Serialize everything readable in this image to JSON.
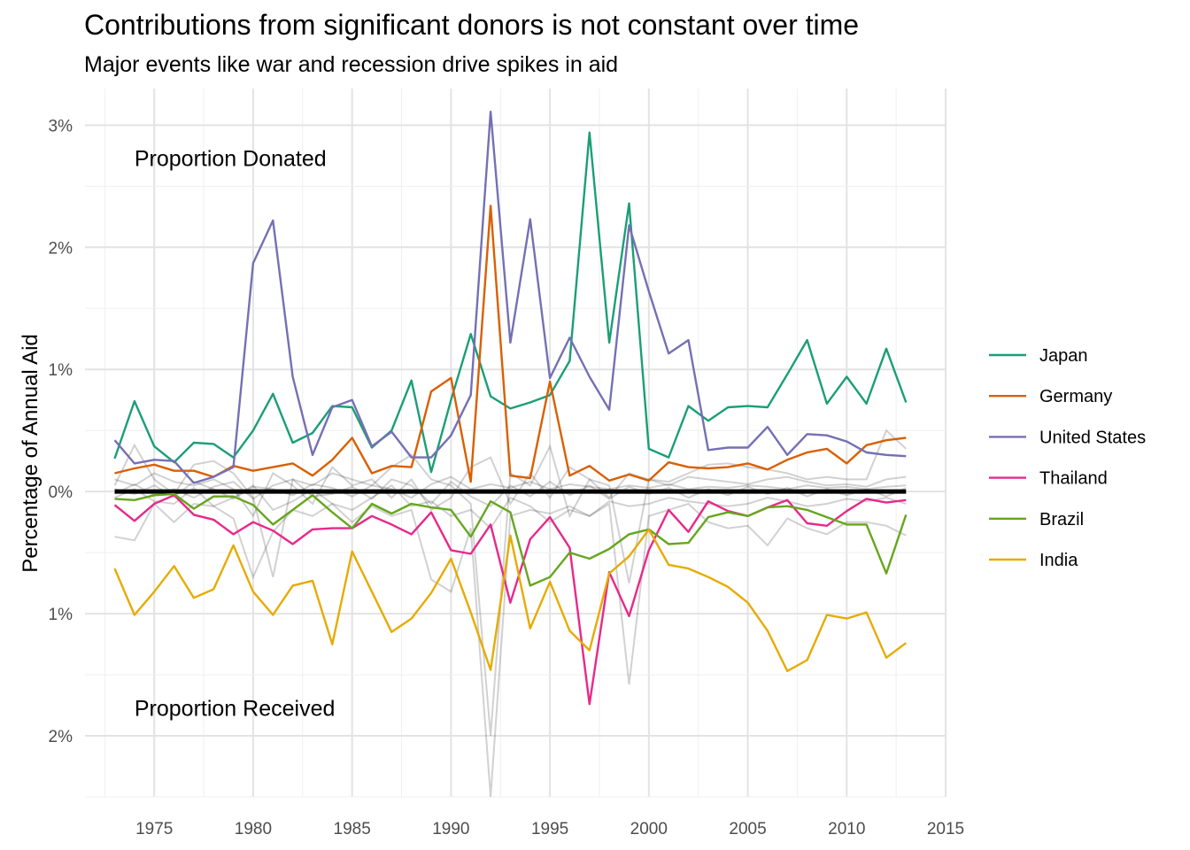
{
  "chart_data": {
    "type": "line",
    "title": "Contributions from significant donors is not constant over time",
    "subtitle": "Major events like war and recession drive spikes in aid",
    "ylabel": "Percentage of Annual Aid",
    "xlabel": "",
    "xlim": [
      1971.5,
      2015
    ],
    "ylim": [
      -2.5,
      3.3
    ],
    "x_ticks": [
      1975,
      1980,
      1985,
      1990,
      1995,
      2000,
      2005,
      2010,
      2015
    ],
    "y_ticks": [
      {
        "value": 3,
        "label": "3%"
      },
      {
        "value": 2,
        "label": "2%"
      },
      {
        "value": 1,
        "label": "1%"
      },
      {
        "value": 0,
        "label": "0%"
      },
      {
        "value": -1,
        "label": "1%"
      },
      {
        "value": -2,
        "label": "2%"
      }
    ],
    "grid": true,
    "legend_position": "right",
    "annotations": [
      {
        "text": "Proportion Donated",
        "x": 1974,
        "y": 2.73
      },
      {
        "text": "Proportion Received",
        "x": 1974,
        "y": -1.77
      }
    ],
    "x": [
      1973,
      1974,
      1975,
      1976,
      1977,
      1978,
      1979,
      1980,
      1981,
      1982,
      1983,
      1984,
      1985,
      1986,
      1987,
      1988,
      1989,
      1990,
      1991,
      1992,
      1993,
      1994,
      1995,
      1996,
      1997,
      1998,
      1999,
      2000,
      2001,
      2002,
      2003,
      2004,
      2005,
      2006,
      2007,
      2008,
      2009,
      2010,
      2011,
      2012,
      2013
    ],
    "series": [
      {
        "name": "Japan",
        "color": "#1B9E77",
        "values": [
          0.27,
          0.74,
          0.37,
          0.24,
          0.4,
          0.39,
          0.28,
          0.5,
          0.8,
          0.4,
          0.48,
          0.7,
          0.69,
          0.36,
          0.5,
          0.91,
          0.16,
          0.75,
          1.29,
          0.78,
          0.68,
          0.73,
          0.79,
          1.07,
          2.94,
          1.22,
          2.36,
          0.35,
          0.28,
          0.7,
          0.58,
          0.69,
          0.7,
          0.69,
          0.96,
          1.24,
          0.72,
          0.94,
          0.72,
          1.17,
          0.73
        ]
      },
      {
        "name": "Germany",
        "color": "#D95F02",
        "values": [
          0.15,
          0.19,
          0.22,
          0.17,
          0.17,
          0.12,
          0.21,
          0.17,
          0.2,
          0.23,
          0.13,
          0.26,
          0.44,
          0.15,
          0.21,
          0.2,
          0.82,
          0.93,
          0.08,
          2.34,
          0.13,
          0.11,
          0.9,
          0.13,
          0.21,
          0.09,
          0.14,
          0.09,
          0.24,
          0.2,
          0.19,
          0.2,
          0.23,
          0.18,
          0.26,
          0.32,
          0.35,
          0.23,
          0.38,
          0.42,
          0.44
        ]
      },
      {
        "name": "United States",
        "color": "#7570B3",
        "values": [
          0.42,
          0.23,
          0.26,
          0.25,
          0.07,
          0.12,
          0.2,
          1.87,
          2.22,
          0.94,
          0.3,
          0.69,
          0.75,
          0.37,
          0.49,
          0.28,
          0.28,
          0.46,
          0.79,
          3.11,
          1.22,
          2.23,
          0.93,
          1.26,
          0.94,
          0.67,
          2.18,
          1.64,
          1.13,
          1.24,
          0.34,
          0.36,
          0.36,
          0.53,
          0.3,
          0.47,
          0.46,
          0.41,
          0.32,
          0.3,
          0.29
        ]
      },
      {
        "name": "Thailand",
        "color": "#E7298A",
        "values": [
          -0.11,
          -0.24,
          -0.1,
          -0.03,
          -0.19,
          -0.23,
          -0.35,
          -0.25,
          -0.32,
          -0.43,
          -0.31,
          -0.3,
          -0.3,
          -0.2,
          -0.27,
          -0.35,
          -0.17,
          -0.48,
          -0.51,
          -0.27,
          -0.91,
          -0.39,
          -0.21,
          -0.46,
          -1.74,
          -0.66,
          -1.02,
          -0.48,
          -0.15,
          -0.33,
          -0.08,
          -0.16,
          -0.2,
          -0.13,
          -0.07,
          -0.26,
          -0.28,
          -0.16,
          -0.06,
          -0.09,
          -0.07
        ]
      },
      {
        "name": "Brazil",
        "color": "#66A61E",
        "values": [
          -0.06,
          -0.07,
          -0.03,
          -0.02,
          -0.14,
          -0.04,
          -0.04,
          -0.11,
          -0.27,
          -0.15,
          -0.03,
          -0.17,
          -0.3,
          -0.1,
          -0.18,
          -0.1,
          -0.13,
          -0.15,
          -0.37,
          -0.08,
          -0.17,
          -0.77,
          -0.7,
          -0.5,
          -0.55,
          -0.47,
          -0.35,
          -0.31,
          -0.43,
          -0.42,
          -0.21,
          -0.17,
          -0.2,
          -0.13,
          -0.12,
          -0.15,
          -0.21,
          -0.27,
          -0.27,
          -0.67,
          -0.19
        ]
      },
      {
        "name": "India",
        "color": "#E6AB02",
        "values": [
          -0.63,
          -1.01,
          -0.82,
          -0.61,
          -0.87,
          -0.8,
          -0.44,
          -0.82,
          -1.01,
          -0.77,
          -0.73,
          -1.25,
          -0.49,
          -0.82,
          -1.15,
          -1.04,
          -0.83,
          -0.55,
          -0.99,
          -1.46,
          -0.36,
          -1.12,
          -0.74,
          -1.14,
          -1.3,
          -0.67,
          -0.53,
          -0.31,
          -0.6,
          -0.63,
          -0.7,
          -0.78,
          -0.91,
          -1.14,
          -1.47,
          -1.38,
          -1.01,
          -1.04,
          -0.99,
          -1.36,
          -1.24
        ]
      }
    ],
    "background_series": [
      [
        -0.37,
        -0.4,
        -0.1,
        -0.25,
        -0.1,
        -0.12,
        -0.22,
        -0.7,
        -0.33,
        -0.15,
        -0.2,
        -0.1,
        -0.25,
        -0.12,
        -0.2,
        -0.15,
        -0.72,
        -0.82,
        -0.3,
        -2.5,
        -0.2,
        -0.15,
        -0.18,
        -0.12,
        -0.2,
        -0.1,
        -1.58,
        -0.2,
        -0.15,
        -0.1,
        -0.25,
        -0.3,
        -0.28,
        -0.44,
        -0.22,
        -0.3,
        -0.35,
        -0.25,
        -0.25,
        -0.28,
        -0.36
      ],
      [
        0.05,
        0.38,
        0.1,
        -0.02,
        0.22,
        0.25,
        0.15,
        -0.05,
        -0.7,
        0.1,
        0.05,
        0.15,
        0.1,
        0.05,
        0.2,
        0.3,
        0.1,
        0.05,
        -0.1,
        -2.0,
        0.15,
        0.05,
        0.37,
        -0.2,
        0.1,
        0.05,
        -0.75,
        0.1,
        0.08,
        0.15,
        0.22,
        0.23,
        0.2,
        0.18,
        0.15,
        0.1,
        0.12,
        0.1,
        0.1,
        0.5,
        0.35
      ],
      [
        0.1,
        0.05,
        0.15,
        0.08,
        0.05,
        0.1,
        0.02,
        -0.2,
        0.15,
        0.05,
        -0.1,
        0.2,
        0.05,
        0.1,
        -0.05,
        0.1,
        -0.15,
        -0.05,
        0.2,
        0.28,
        -0.1,
        0.15,
        -0.05,
        0.2,
        0.1,
        -0.05,
        0.15,
        0.1,
        0.05,
        0.12,
        0.1,
        0.08,
        0.06,
        0.1,
        0.12,
        0.08,
        0.05,
        0.06,
        0.04,
        0.1,
        0.12
      ],
      [
        -0.05,
        0.02,
        -0.08,
        -0.1,
        0.03,
        -0.12,
        -0.05,
        0.05,
        -0.15,
        -0.08,
        0.02,
        -0.1,
        -0.15,
        -0.05,
        0.05,
        -0.12,
        -0.08,
        -0.2,
        -0.15,
        -0.3,
        -0.05,
        -0.12,
        -0.25,
        -0.15,
        -0.2,
        -0.08,
        -0.12,
        -0.1,
        -0.05,
        -0.08,
        -0.1,
        -0.12,
        -0.1,
        -0.05,
        -0.08,
        -0.12,
        -0.1,
        -0.06,
        -0.08,
        -0.05,
        -0.1
      ],
      [
        0.02,
        -0.02,
        0.05,
        -0.04,
        0.08,
        0.02,
        -0.06,
        0.04,
        0.02,
        -0.03,
        0.06,
        0.03,
        -0.04,
        0.05,
        0.02,
        -0.05,
        0.06,
        0.12,
        0.02,
        0.06,
        0.03,
        0.08,
        0.02,
        0.06,
        0.04,
        0.02,
        0.05,
        0.03,
        0.06,
        0.02,
        0.04,
        0.03,
        0.05,
        0.04,
        0.02,
        0.05,
        0.03,
        0.04,
        0.02,
        0.04,
        0.05
      ],
      [
        -0.02,
        0.06,
        -0.03,
        0.02,
        -0.05,
        0.04,
        0.08,
        -0.06,
        0.05,
        0.1,
        -0.04,
        -0.02,
        0.04,
        -0.06,
        0.1,
        0.05,
        -0.1,
        0.08,
        -0.04,
        -0.12,
        0.05,
        -0.04,
        0.08,
        -0.03,
        0.05,
        -0.06,
        0.04,
        -0.02,
        0.03,
        -0.05,
        0.02,
        -0.03,
        0.04,
        -0.02,
        0.03,
        -0.04,
        0.02,
        -0.03,
        0.02,
        -0.04,
        0.03
      ]
    ]
  }
}
